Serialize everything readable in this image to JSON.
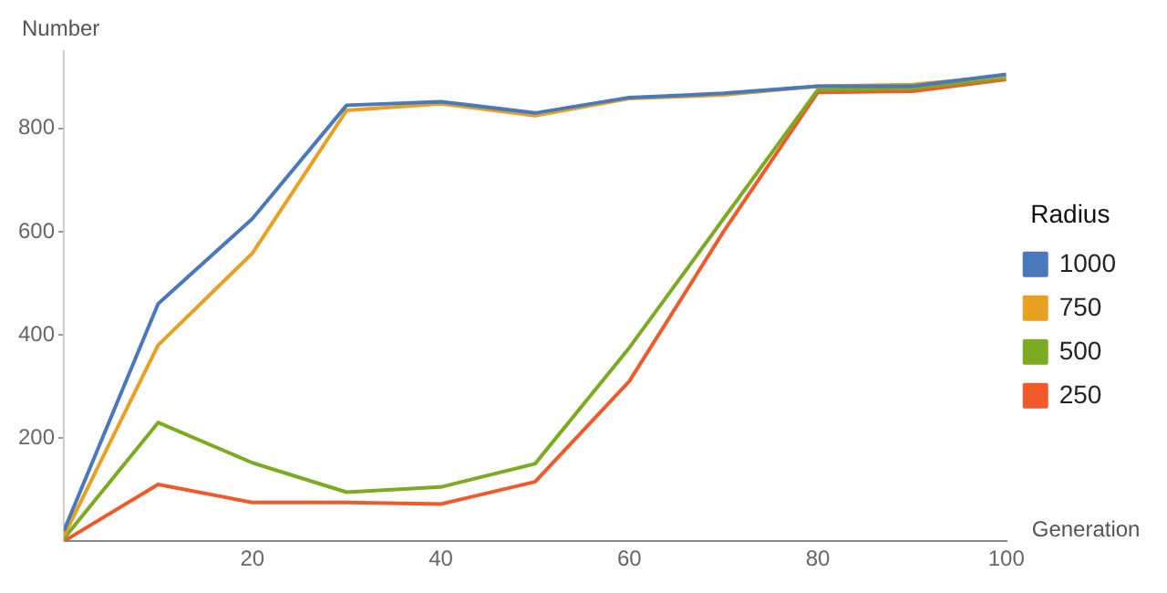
{
  "chart_data": {
    "type": "line",
    "xlabel": "Generation",
    "ylabel": "Number",
    "legend_title": "Radius",
    "legend": "right",
    "grid": false,
    "marker": "none",
    "line_style": "solid",
    "x": [
      0,
      10,
      20,
      30,
      40,
      50,
      60,
      70,
      80,
      90,
      100
    ],
    "xlim": [
      0,
      100
    ],
    "xticks": [
      20,
      40,
      60,
      80,
      100
    ],
    "ylim": [
      0,
      950
    ],
    "yticks": [
      200,
      400,
      600,
      800
    ],
    "series": [
      {
        "name": "1000",
        "color": "#4a78bd",
        "values": [
          20,
          460,
          625,
          845,
          852,
          830,
          860,
          868,
          882,
          882,
          905
        ]
      },
      {
        "name": "750",
        "color": "#e8a020",
        "values": [
          10,
          380,
          558,
          835,
          848,
          825,
          858,
          865,
          882,
          885,
          902
        ]
      },
      {
        "name": "500",
        "color": "#7cab22",
        "values": [
          5,
          230,
          152,
          95,
          105,
          150,
          375,
          625,
          875,
          878,
          898
        ]
      },
      {
        "name": "250",
        "color": "#f05a28",
        "values": [
          0,
          110,
          75,
          75,
          72,
          115,
          310,
          600,
          870,
          872,
          895
        ]
      }
    ]
  }
}
